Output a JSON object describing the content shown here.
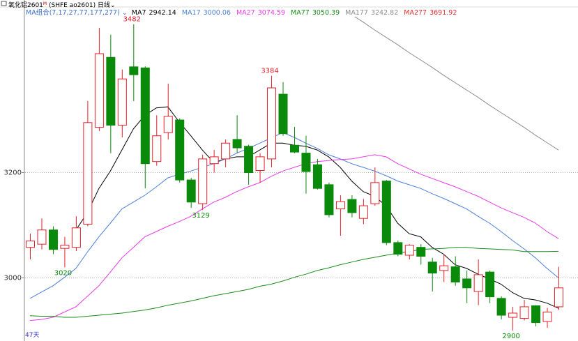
{
  "header": {
    "name": "氧化铝2601",
    "mark": "M",
    "code": "(SHFE ao2601)",
    "period_type": "日线"
  },
  "chart_data": {
    "type": "candlestick",
    "legend_title": "MA组合(7,17,27,77,177,277)",
    "legend_title_color": "#3a6fd0",
    "period": "47天",
    "up_color": "#e8202a",
    "down_color": "#0a8a0a",
    "ylim": [
      2880,
      3528
    ],
    "yticks": [
      3000,
      3200
    ],
    "grid": true,
    "open": [
      3058,
      3064,
      3091,
      3056,
      3058,
      3102,
      3286,
      3419,
      3290,
      3401,
      3399,
      3221,
      3276,
      3300,
      3186,
      3141,
      3217,
      3226,
      3263,
      3250,
      3204,
      3226,
      3349,
      3252,
      3237,
      3215,
      3177,
      3131,
      3149,
      3113,
      3141,
      3184,
      3067,
      3043,
      3058,
      3030,
      3014,
      3021,
      2998,
      2974,
      3011,
      2961,
      2925,
      2923,
      2947,
      2917,
      2945
    ],
    "high": [
      3084,
      3113,
      3098,
      3078,
      3117,
      3336,
      3475,
      3462,
      3396,
      3482,
      3402,
      3309,
      3369,
      3303,
      3190,
      3234,
      3243,
      3263,
      3309,
      3253,
      3237,
      3384,
      3372,
      3287,
      3270,
      3226,
      3181,
      3157,
      3157,
      3150,
      3210,
      3186,
      3071,
      3064,
      3064,
      3038,
      3045,
      3041,
      3014,
      3035,
      3014,
      2965,
      2945,
      2958,
      2948,
      2943,
      3021
    ],
    "low": [
      3035,
      3054,
      3045,
      3020,
      3051,
      3098,
      3279,
      3237,
      3267,
      3336,
      3170,
      3213,
      3263,
      3181,
      3133,
      3129,
      3200,
      3210,
      3237,
      3177,
      3181,
      3210,
      3270,
      3237,
      3160,
      3168,
      3115,
      3080,
      3115,
      3102,
      3137,
      3062,
      3041,
      3035,
      3025,
      2974,
      2992,
      2985,
      2952,
      2948,
      2952,
      2921,
      2900,
      2919,
      2908,
      2905,
      2939
    ],
    "close": [
      3070,
      3091,
      3054,
      3062,
      3095,
      3295,
      3426,
      3290,
      3378,
      3386,
      3217,
      3270,
      3307,
      3186,
      3144,
      3226,
      3230,
      3256,
      3247,
      3200,
      3230,
      3361,
      3274,
      3239,
      3202,
      3170,
      3120,
      3145,
      3124,
      3137,
      3181,
      3067,
      3045,
      3062,
      3041,
      3009,
      3023,
      2992,
      2981,
      3006,
      2964,
      2929,
      2933,
      2945,
      2915,
      2935,
      2981
    ],
    "annotations": [
      3482,
      3384,
      3129,
      3020,
      2900
    ],
    "series": [
      {
        "name": "MA7",
        "color": "#000000",
        "latest": 2942.14,
        "values": [
          null,
          null,
          null,
          null,
          3091,
          3124,
          3170,
          3203,
          3243,
          3283,
          3309,
          3323,
          3325,
          3296,
          3270,
          3243,
          3219,
          3226,
          3230,
          3230,
          3243,
          3256,
          3256,
          3252,
          3250,
          3243,
          3230,
          3210,
          3184,
          3164,
          3155,
          3137,
          3104,
          3084,
          3078,
          3058,
          3045,
          3025,
          3018,
          3007,
          2998,
          2988,
          2972,
          2961,
          2958,
          2952,
          2942.14
        ]
      },
      {
        "name": "MA17",
        "color": "#4a7fd8",
        "latest": 3000.06,
        "values": [
          2961,
          2973,
          2985,
          3001,
          3018,
          3049,
          3078,
          3104,
          3131,
          3144,
          3157,
          3173,
          3190,
          3197,
          3203,
          3210,
          3217,
          3226,
          3237,
          3246,
          3256,
          3266,
          3276,
          3267,
          3256,
          3246,
          3234,
          3226,
          3217,
          3210,
          3203,
          3194,
          3184,
          3177,
          3170,
          3160,
          3151,
          3141,
          3131,
          3117,
          3104,
          3088,
          3071,
          3055,
          3038,
          3018,
          3000.06
        ]
      },
      {
        "name": "MA27",
        "color": "#e83ae8",
        "latest": 3074.59,
        "values": [
          2919,
          2921,
          2925,
          2935,
          2945,
          2965,
          2985,
          3011,
          3038,
          3058,
          3078,
          3088,
          3098,
          3107,
          3117,
          3131,
          3144,
          3153,
          3164,
          3173,
          3181,
          3193,
          3203,
          3210,
          3217,
          3221,
          3223,
          3225,
          3226,
          3230,
          3234,
          3230,
          3217,
          3207,
          3197,
          3189,
          3181,
          3173,
          3164,
          3155,
          3144,
          3133,
          3124,
          3115,
          3104,
          3088,
          3074.59
        ]
      },
      {
        "name": "MA77",
        "color": "#1a8c1a",
        "latest": 3050.39,
        "values": [
          2928,
          2927,
          2927,
          2925,
          2925,
          2927,
          2929,
          2931,
          2933,
          2936,
          2939,
          2943,
          2948,
          2952,
          2956,
          2961,
          2966,
          2970,
          2974,
          2978,
          2984,
          2988,
          2994,
          3001,
          3007,
          3014,
          3019,
          3025,
          3030,
          3035,
          3039,
          3043,
          3047,
          3050,
          3054,
          3055,
          3056,
          3058,
          3058,
          3056,
          3055,
          3054,
          3053,
          3050,
          3050,
          3050,
          3050.39
        ]
      },
      {
        "name": "MA177",
        "color": "#8c8c8c",
        "latest": 3242.82,
        "values": [
          null,
          null,
          null,
          null,
          null,
          null,
          null,
          null,
          null,
          null,
          null,
          null,
          null,
          null,
          null,
          null,
          null,
          null,
          null,
          null,
          null,
          null,
          null,
          null,
          null,
          null,
          3528,
          3514,
          3500,
          3486,
          3471,
          3457,
          3443,
          3428,
          3414,
          3400,
          3385,
          3371,
          3357,
          3343,
          3328,
          3314,
          3300,
          3286,
          3271,
          3257,
          3242.82
        ]
      },
      {
        "name": "MA277",
        "color": "#e03030",
        "latest": 3691.92
      }
    ]
  }
}
